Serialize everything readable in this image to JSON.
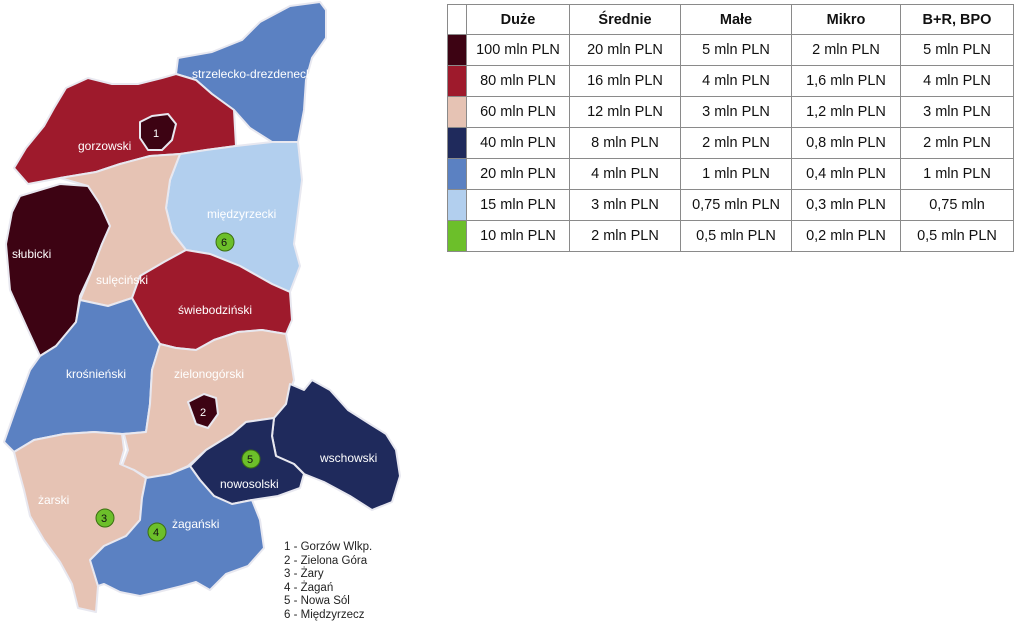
{
  "colors": {
    "tier_100": "#3d0313",
    "tier_80": "#9e1a2c",
    "tier_60": "#e6c3b4",
    "tier_40": "#1f2a5c",
    "tier_20": "#5b81c2",
    "tier_15": "#b2cfee",
    "tier_10": "#6cbf2a",
    "border": "#e8e8f0"
  },
  "counties": [
    {
      "id": "strzelecko-drezdenecki",
      "label": "strzelecko-drezdenecki",
      "tier": "tier_20"
    },
    {
      "id": "gorzowski",
      "label": "gorzowski",
      "tier": "tier_80"
    },
    {
      "id": "miedzyrzecki",
      "label": "międzyrzecki",
      "tier": "tier_15"
    },
    {
      "id": "slubicki",
      "label": "słubicki",
      "tier": "tier_100"
    },
    {
      "id": "sulecinski",
      "label": "sulęciński",
      "tier": "tier_60"
    },
    {
      "id": "swiebodzinski",
      "label": "świebodziński",
      "tier": "tier_80"
    },
    {
      "id": "krosnienski",
      "label": "krośnieński",
      "tier": "tier_20"
    },
    {
      "id": "zielonogorski",
      "label": "zielonogórski",
      "tier": "tier_60"
    },
    {
      "id": "wschowski",
      "label": "wschowski",
      "tier": "tier_40"
    },
    {
      "id": "nowosolski",
      "label": "nowosolski",
      "tier": "tier_40"
    },
    {
      "id": "zarski",
      "label": "żarski",
      "tier": "tier_60"
    },
    {
      "id": "zaganski",
      "label": "żagański",
      "tier": "tier_20"
    }
  ],
  "cities": [
    {
      "number": "1",
      "name": "Gorzów Wlkp.",
      "tier": "tier_100"
    },
    {
      "number": "2",
      "name": "Zielona Góra",
      "tier": "tier_100"
    },
    {
      "number": "3",
      "name": "Żary",
      "tier": "tier_10"
    },
    {
      "number": "4",
      "name": "Żagań",
      "tier": "tier_10"
    },
    {
      "number": "5",
      "name": "Nowa Sól",
      "tier": "tier_10"
    },
    {
      "number": "6",
      "name": "Międzyrzecz",
      "tier": "tier_10"
    }
  ],
  "city_key": [
    "1 - Gorzów Wlkp.",
    "2 - Zielona Góra",
    "3 - Żary",
    "4 - Żagań",
    "5 - Nowa Sól",
    "6 - Międzyrzecz"
  ],
  "legend": {
    "headers": [
      "Duże",
      "Średnie",
      "Małe",
      "Mikro",
      "B+R, BPO"
    ],
    "rows": [
      {
        "tier": "tier_100",
        "cells": [
          "100 mln  PLN",
          "20 mln PLN",
          "5 mln PLN",
          "2 mln PLN",
          "5 mln PLN"
        ]
      },
      {
        "tier": "tier_80",
        "cells": [
          "80 mln PLN",
          "16 mln PLN",
          "4 mln PLN",
          "1,6 mln PLN",
          "4 mln PLN"
        ]
      },
      {
        "tier": "tier_60",
        "cells": [
          "60 mln PLN",
          "12 mln PLN",
          "3 mln PLN",
          "1,2 mln PLN",
          "3 mln PLN"
        ]
      },
      {
        "tier": "tier_40",
        "cells": [
          "40 mln PLN",
          "8 mln PLN",
          "2 mln PLN",
          "0,8 mln PLN",
          "2 mln PLN"
        ]
      },
      {
        "tier": "tier_20",
        "cells": [
          "20 mln PLN",
          "4 mln PLN",
          "1 mln PLN",
          "0,4 mln PLN",
          "1 mln PLN"
        ]
      },
      {
        "tier": "tier_15",
        "cells": [
          "15 mln PLN",
          "3 mln PLN",
          "0,75 mln PLN",
          "0,3 mln PLN",
          "0,75 mln"
        ]
      },
      {
        "tier": "tier_10",
        "cells": [
          "10 mln PLN",
          "2 mln PLN",
          "0,5 mln PLN",
          "0,2 mln PLN",
          "0,5 mln PLN"
        ]
      }
    ]
  }
}
